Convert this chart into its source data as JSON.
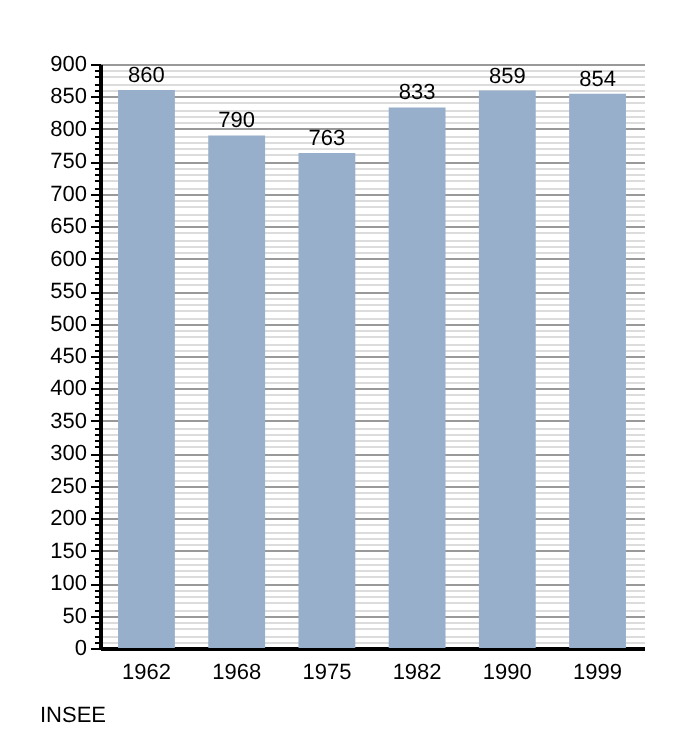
{
  "chart_data": {
    "type": "bar",
    "categories": [
      "1962",
      "1968",
      "1975",
      "1982",
      "1990",
      "1999"
    ],
    "values": [
      860,
      790,
      763,
      833,
      859,
      854
    ],
    "color": "#98afcb",
    "data_labels": true,
    "grid": "y",
    "ylim": [
      0,
      900
    ],
    "yticks": [
      0,
      {
        "value": 10,
        "label": null
      },
      {
        "value": 20,
        "label": null
      },
      {
        "value": 30,
        "label": null
      },
      {
        "value": 40,
        "label": null
      },
      50,
      {
        "value": 60,
        "label": null
      },
      {
        "value": 70,
        "label": null
      },
      {
        "value": 80,
        "label": null
      },
      {
        "value": 90,
        "label": null
      },
      100,
      {
        "value": 110,
        "label": null
      },
      {
        "value": 120,
        "label": null
      },
      {
        "value": 130,
        "label": null
      },
      {
        "value": 140,
        "label": null
      },
      150,
      {
        "value": 160,
        "label": null
      },
      {
        "value": 170,
        "label": null
      },
      {
        "value": 180,
        "label": null
      },
      {
        "value": 190,
        "label": null
      },
      200,
      {
        "value": 210,
        "label": null
      },
      {
        "value": 220,
        "label": null
      },
      {
        "value": 230,
        "label": null
      },
      {
        "value": 240,
        "label": null
      },
      250,
      {
        "value": 260,
        "label": null
      },
      {
        "value": 270,
        "label": null
      },
      {
        "value": 280,
        "label": null
      },
      {
        "value": 290,
        "label": null
      },
      300,
      {
        "value": 310,
        "label": null
      },
      {
        "value": 320,
        "label": null
      },
      {
        "value": 330,
        "label": null
      },
      {
        "value": 340,
        "label": null
      },
      350,
      {
        "value": 360,
        "label": null
      },
      {
        "value": 370,
        "label": null
      },
      {
        "value": 380,
        "label": null
      },
      {
        "value": 390,
        "label": null
      },
      400,
      {
        "value": 410,
        "label": null
      },
      {
        "value": 420,
        "label": null
      },
      {
        "value": 430,
        "label": null
      },
      {
        "value": 440,
        "label": null
      },
      450,
      {
        "value": 460,
        "label": null
      },
      {
        "value": 470,
        "label": null
      },
      {
        "value": 480,
        "label": null
      },
      {
        "value": 490,
        "label": null
      },
      500,
      {
        "value": 510,
        "label": null
      },
      {
        "value": 520,
        "label": null
      },
      {
        "value": 530,
        "label": null
      },
      {
        "value": 540,
        "label": null
      },
      550,
      {
        "value": 560,
        "label": null
      },
      {
        "value": 570,
        "label": null
      },
      {
        "value": 580,
        "label": null
      },
      {
        "value": 590,
        "label": null
      },
      600,
      {
        "value": 610,
        "label": null
      },
      {
        "value": 620,
        "label": null
      },
      {
        "value": 630,
        "label": null
      },
      {
        "value": 640,
        "label": null
      },
      650,
      {
        "value": 660,
        "label": null
      },
      {
        "value": 670,
        "label": null
      },
      {
        "value": 680,
        "label": null
      },
      {
        "value": 690,
        "label": null
      },
      700,
      {
        "value": 710,
        "label": null
      },
      {
        "value": 720,
        "label": null
      },
      {
        "value": 730,
        "label": null
      },
      {
        "value": 740,
        "label": null
      },
      750,
      {
        "value": 760,
        "label": null
      },
      {
        "value": 770,
        "label": null
      },
      {
        "value": 780,
        "label": null
      },
      {
        "value": 790,
        "label": null
      },
      800,
      {
        "value": 810,
        "label": null
      },
      {
        "value": 820,
        "label": null
      },
      {
        "value": 830,
        "label": null
      },
      {
        "value": 840,
        "label": null
      },
      850,
      {
        "value": 860,
        "label": null
      },
      {
        "value": 870,
        "label": null
      },
      {
        "value": 880,
        "label": null
      },
      {
        "value": 890,
        "label": null
      },
      900
    ],
    "annotations": [
      "INSEE"
    ]
  }
}
